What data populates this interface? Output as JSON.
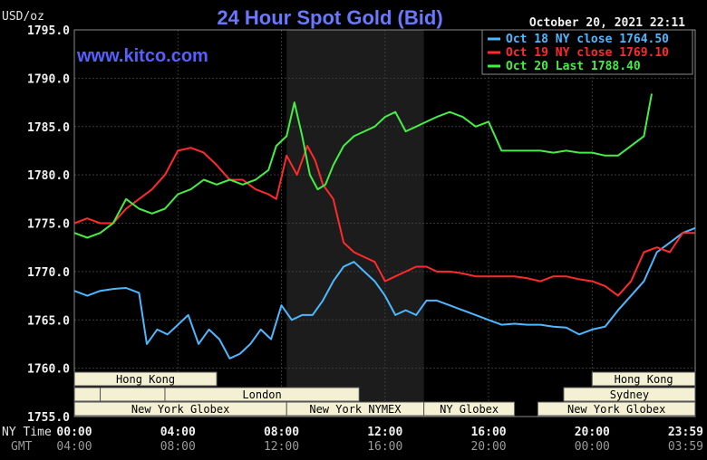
{
  "header": {
    "title": "24 Hour Spot Gold (Bid)",
    "ylabel": "USD/oz",
    "brand": "www.kitco.com",
    "datetime": "October 20, 2021 22:11"
  },
  "timeline": {
    "ny_label": "NY Time",
    "gmt_label": "GMT",
    "ny_ticks": [
      "00:00",
      "04:00",
      "08:00",
      "12:00",
      "16:00",
      "20:00",
      "23:59"
    ],
    "gmt_ticks": [
      "04:00",
      "08:00",
      "12:00",
      "16:00",
      "20:00",
      "00:00",
      "03:59"
    ]
  },
  "sessions": [
    {
      "label": "Hong Kong",
      "start": 0,
      "end": 5.5,
      "row": 0
    },
    {
      "label": "",
      "start": 0,
      "end": 1.0,
      "row": 1
    },
    {
      "label": "",
      "start": 1.0,
      "end": 3.5,
      "row": 1
    },
    {
      "label": "London",
      "start": 3.5,
      "end": 11.0,
      "row": 1
    },
    {
      "label": "New York Globex",
      "start": 0,
      "end": 8.2,
      "row": 2
    },
    {
      "label": "",
      "start": 20.0,
      "end": 23.98,
      "row": 0
    },
    {
      "label": "Hong Kong",
      "start": 20.0,
      "end": 23.98,
      "row": 0
    },
    {
      "label": "Sydney",
      "start": 18.9,
      "end": 23.98,
      "row": 1
    },
    {
      "label": "New York NYMEX",
      "start": 8.2,
      "end": 13.5,
      "row": 2
    },
    {
      "label": "NY Globex",
      "start": 13.5,
      "end": 17.0,
      "row": 2
    },
    {
      "label": "New York Globex",
      "start": 17.9,
      "end": 23.98,
      "row": 2
    }
  ],
  "chart_data": {
    "type": "line",
    "title": "24 Hour Spot Gold (Bid)",
    "ylabel": "USD/oz",
    "xlabel": "NY Time",
    "xlim": [
      0,
      23.98
    ],
    "ylim": [
      1755.0,
      1795.0
    ],
    "yticks": [
      "1755.0",
      "1760.0",
      "1765.0",
      "1770.0",
      "1775.0",
      "1780.0",
      "1785.0",
      "1790.0",
      "1795.0"
    ],
    "grid": true,
    "shaded_region": [
      8.2,
      13.5
    ],
    "legend_position": "top-right",
    "series": [
      {
        "name": "Oct 18 NY close 1764.50",
        "color": "#4db8ff",
        "x": [
          0,
          0.5,
          1.0,
          1.5,
          2.0,
          2.5,
          2.8,
          3.2,
          3.6,
          4.0,
          4.4,
          4.8,
          5.2,
          5.6,
          6.0,
          6.4,
          6.8,
          7.2,
          7.6,
          8.0,
          8.4,
          8.8,
          9.2,
          9.6,
          10.0,
          10.4,
          10.8,
          11.2,
          11.6,
          12.0,
          12.4,
          12.8,
          13.2,
          13.6,
          14.0,
          14.5,
          15.0,
          15.5,
          16.0,
          16.5,
          17.0,
          17.5,
          18.0,
          18.5,
          19.0,
          19.5,
          20.0,
          20.5,
          21.0,
          21.5,
          22.0,
          22.5,
          23.0,
          23.5,
          23.98
        ],
        "values": [
          1768.0,
          1767.5,
          1768.0,
          1768.2,
          1768.3,
          1767.8,
          1762.5,
          1764.0,
          1763.5,
          1764.5,
          1765.5,
          1762.5,
          1764.0,
          1763.0,
          1761.0,
          1761.5,
          1762.5,
          1764.0,
          1763.0,
          1766.5,
          1765.0,
          1765.5,
          1765.5,
          1767.0,
          1769.0,
          1770.5,
          1771.0,
          1770.0,
          1769.0,
          1767.5,
          1765.5,
          1766.0,
          1765.5,
          1767.0,
          1767.0,
          1766.5,
          1766.0,
          1765.5,
          1765.0,
          1764.5,
          1764.6,
          1764.5,
          1764.5,
          1764.3,
          1764.2,
          1763.5,
          1764.0,
          1764.3,
          1766.0,
          1767.5,
          1769.0,
          1772.0,
          1773.0,
          1774.0,
          1774.5
        ]
      },
      {
        "name": "Oct 19 NY close 1769.10",
        "color": "#ff2a2a",
        "x": [
          0,
          0.5,
          1.0,
          1.5,
          2.0,
          2.5,
          3.0,
          3.5,
          4.0,
          4.5,
          5.0,
          5.5,
          6.0,
          6.5,
          7.0,
          7.5,
          7.8,
          8.2,
          8.6,
          9.0,
          9.3,
          9.6,
          10.0,
          10.4,
          10.8,
          11.2,
          11.6,
          12.0,
          12.4,
          12.8,
          13.2,
          13.6,
          14.0,
          14.5,
          15.0,
          15.5,
          16.0,
          16.5,
          17.0,
          17.5,
          18.0,
          18.5,
          19.0,
          19.5,
          20.0,
          20.5,
          21.0,
          21.5,
          22.0,
          22.5,
          23.0,
          23.5,
          23.98
        ],
        "values": [
          1775.0,
          1775.5,
          1775.0,
          1775.0,
          1776.5,
          1777.5,
          1778.5,
          1780.0,
          1782.5,
          1782.8,
          1782.3,
          1781.0,
          1779.5,
          1779.5,
          1778.5,
          1778.0,
          1777.5,
          1782.0,
          1780.0,
          1783.0,
          1781.5,
          1779.0,
          1777.5,
          1773.0,
          1772.0,
          1771.5,
          1771.0,
          1769.0,
          1769.5,
          1770.0,
          1770.5,
          1770.5,
          1770.0,
          1770.0,
          1769.8,
          1769.5,
          1769.5,
          1769.5,
          1769.5,
          1769.3,
          1769.0,
          1769.5,
          1769.5,
          1769.2,
          1769.0,
          1768.5,
          1767.5,
          1769.0,
          1772.0,
          1772.5,
          1772.0,
          1774.0,
          1774.0
        ]
      },
      {
        "name": "Oct 20 Last 1788.40",
        "color": "#44ee44",
        "x": [
          0,
          0.5,
          1.0,
          1.5,
          2.0,
          2.5,
          3.0,
          3.5,
          4.0,
          4.5,
          5.0,
          5.5,
          6.0,
          6.5,
          7.0,
          7.5,
          7.8,
          8.2,
          8.5,
          8.8,
          9.1,
          9.4,
          9.7,
          10.0,
          10.4,
          10.8,
          11.2,
          11.6,
          12.0,
          12.4,
          12.8,
          13.2,
          13.6,
          14.0,
          14.5,
          15.0,
          15.5,
          16.0,
          16.5,
          17.0,
          17.5,
          18.0,
          18.5,
          19.0,
          19.5,
          20.0,
          20.5,
          21.0,
          21.5,
          22.0,
          22.3
        ],
        "values": [
          1774.0,
          1773.5,
          1774.0,
          1775.0,
          1777.5,
          1776.5,
          1776.0,
          1776.5,
          1778.0,
          1778.5,
          1779.5,
          1779.0,
          1779.5,
          1779.0,
          1779.5,
          1780.5,
          1783.0,
          1784.0,
          1787.5,
          1784.0,
          1780.0,
          1778.5,
          1779.0,
          1781.0,
          1783.0,
          1784.0,
          1784.5,
          1785.0,
          1786.0,
          1786.5,
          1784.5,
          1785.0,
          1785.5,
          1786.0,
          1786.5,
          1786.0,
          1785.0,
          1785.5,
          1782.5,
          1782.5,
          1782.5,
          1782.5,
          1782.3,
          1782.5,
          1782.3,
          1782.3,
          1782.0,
          1782.0,
          1783.0,
          1784.0,
          1788.4
        ]
      }
    ]
  }
}
